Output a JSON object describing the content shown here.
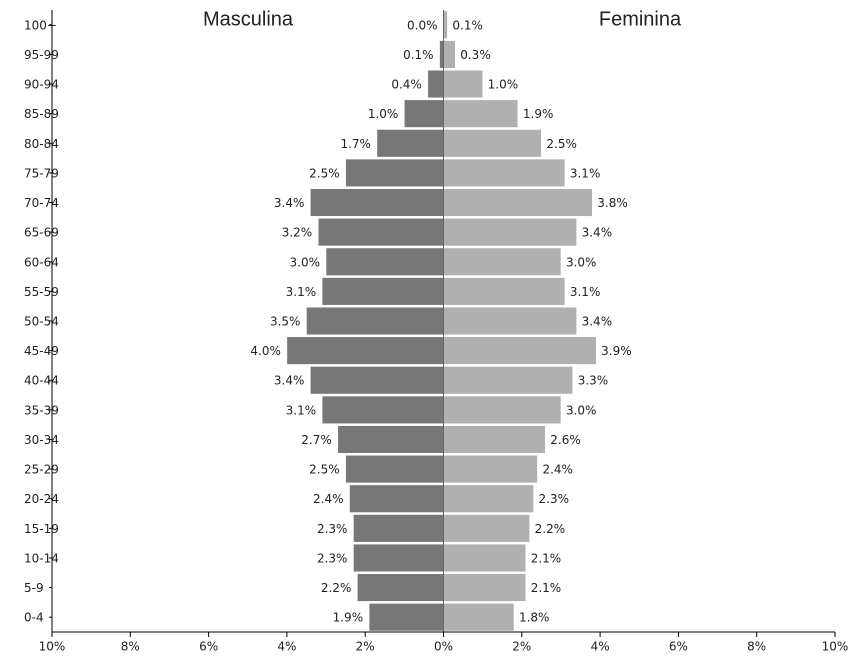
{
  "chart_data": {
    "type": "pyramid",
    "orientation": "horizontal",
    "categories": [
      "0-4",
      "5-9",
      "10-14",
      "15-19",
      "20-24",
      "25-29",
      "30-34",
      "35-39",
      "40-44",
      "45-49",
      "50-54",
      "55-59",
      "60-64",
      "65-69",
      "70-74",
      "75-79",
      "80-84",
      "85-89",
      "90-94",
      "95-99",
      "100+"
    ],
    "series": [
      {
        "name": "Masculina",
        "color": "#777777",
        "values": [
          1.9,
          2.2,
          2.3,
          2.3,
          2.4,
          2.5,
          2.7,
          3.1,
          3.4,
          4.0,
          3.5,
          3.1,
          3.0,
          3.2,
          3.4,
          2.5,
          1.7,
          1.0,
          0.4,
          0.1,
          0.0
        ],
        "value_labels": [
          "1.9%",
          "2.2%",
          "2.3%",
          "2.3%",
          "2.4%",
          "2.5%",
          "2.7%",
          "3.1%",
          "3.4%",
          "4.0%",
          "3.5%",
          "3.1%",
          "3.0%",
          "3.2%",
          "3.4%",
          "2.5%",
          "1.7%",
          "1.0%",
          "0.4%",
          "0.1%",
          "0.0%"
        ]
      },
      {
        "name": "Feminina",
        "color": "#b0b0b0",
        "values": [
          1.8,
          2.1,
          2.1,
          2.2,
          2.3,
          2.4,
          2.6,
          3.0,
          3.3,
          3.9,
          3.4,
          3.1,
          3.0,
          3.4,
          3.8,
          3.1,
          2.5,
          1.9,
          1.0,
          0.3,
          0.1
        ],
        "value_labels": [
          "1.8%",
          "2.1%",
          "2.1%",
          "2.2%",
          "2.3%",
          "2.4%",
          "2.6%",
          "3.0%",
          "3.3%",
          "3.9%",
          "3.4%",
          "3.1%",
          "3.0%",
          "3.4%",
          "3.8%",
          "3.1%",
          "2.5%",
          "1.9%",
          "1.0%",
          "0.3%",
          "0.1%"
        ]
      }
    ],
    "xlim": [
      -10,
      10
    ],
    "xticks": [
      {
        "value": -10,
        "label": "10%"
      },
      {
        "value": -8,
        "label": "8%"
      },
      {
        "value": -6,
        "label": "6%"
      },
      {
        "value": -4,
        "label": "4%"
      },
      {
        "value": -2,
        "label": "2%"
      },
      {
        "value": 0,
        "label": "0%"
      },
      {
        "value": 2,
        "label": "2%"
      },
      {
        "value": 4,
        "label": "4%"
      },
      {
        "value": 6,
        "label": "6%"
      },
      {
        "value": 8,
        "label": "8%"
      },
      {
        "value": 10,
        "label": "10%"
      }
    ]
  }
}
